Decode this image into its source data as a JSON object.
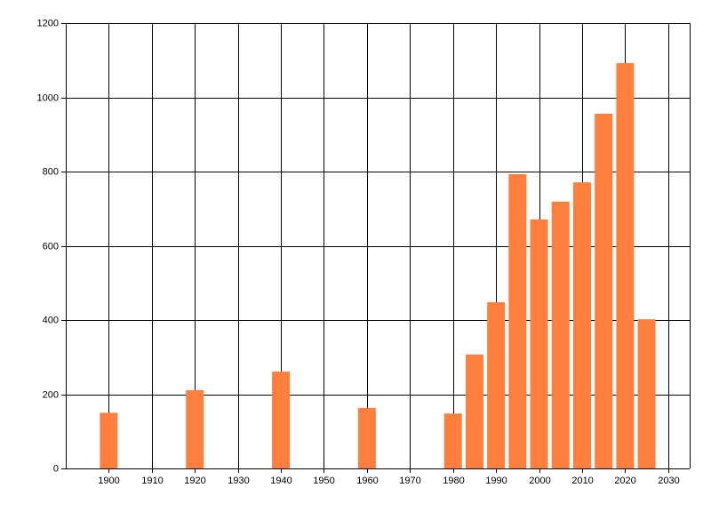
{
  "chart_data": {
    "type": "bar",
    "x": [
      1900,
      1920,
      1940,
      1960,
      1980,
      1985,
      1990,
      1995,
      2000,
      2005,
      2010,
      2015,
      2020,
      2025
    ],
    "values": [
      150,
      211,
      261,
      163,
      148,
      307,
      448,
      793,
      671,
      719,
      771,
      956,
      1092,
      402
    ],
    "color": "#ff7f3f",
    "xlim": [
      1890,
      2035
    ],
    "xticks": [
      1900,
      1910,
      1920,
      1930,
      1940,
      1950,
      1960,
      1970,
      1980,
      1990,
      2000,
      2010,
      2020,
      2030
    ],
    "ylim": [
      0,
      1200
    ],
    "yticks": [
      0,
      200,
      400,
      600,
      800,
      1000,
      1200
    ],
    "grid": true
  }
}
